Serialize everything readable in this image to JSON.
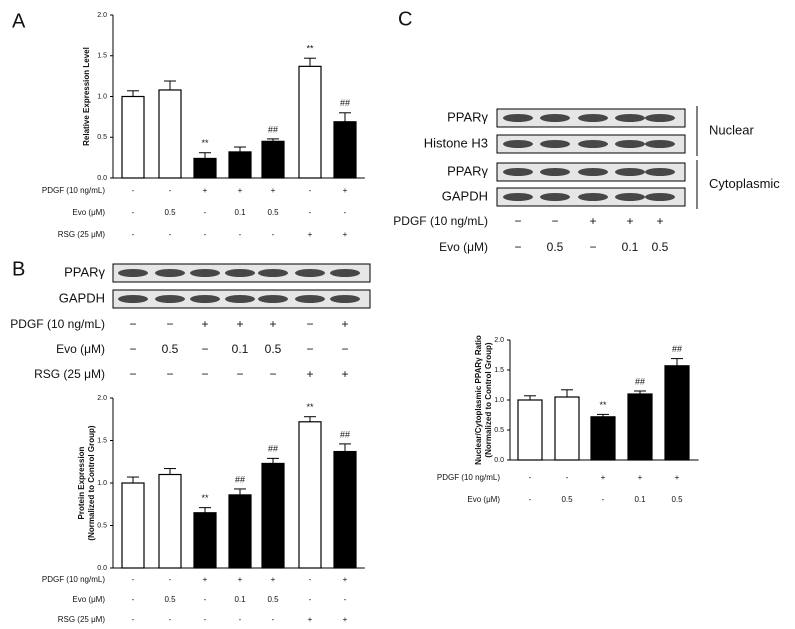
{
  "panel_labels": [
    "A",
    "B",
    "C"
  ],
  "chart_data": [
    {
      "type": "bar",
      "ylabel": [
        "Relative Expression Level"
      ],
      "categories": [
        null,
        null,
        null,
        null,
        null,
        null,
        null
      ],
      "values": [
        1.0,
        1.08,
        0.24,
        0.32,
        0.45,
        1.37,
        0.69
      ],
      "errors": [
        0.07,
        0.11,
        0.07,
        0.06,
        0.03,
        0.1,
        0.11
      ],
      "colors": [
        "#ffffff",
        "#ffffff",
        "#000000",
        "#000000",
        "#000000",
        "#ffffff",
        "#000000"
      ],
      "annotations": [
        null,
        null,
        "**",
        null,
        "##",
        "**",
        "##"
      ],
      "ylim": [
        0,
        2.0
      ],
      "yticks": [
        {
          "value": 0,
          "label": "0.0"
        },
        0.5,
        {
          "value": 1,
          "label": "1.0"
        },
        1.5,
        {
          "value": 2,
          "label": "2.0"
        }
      ],
      "treatments": [
        {
          "name": "PDGF (10 ng/mL)",
          "values": [
            "-",
            "-",
            "+",
            "+",
            "+",
            "-",
            "+"
          ]
        },
        {
          "name": "Evo (μM)",
          "values": [
            "-",
            "0.5",
            "-",
            "0.1",
            "0.5",
            "-",
            "-"
          ]
        },
        {
          "name": "RSG (25 μM)",
          "values": [
            "-",
            "-",
            "-",
            "-",
            "-",
            "+",
            "+"
          ]
        }
      ]
    },
    {
      "type": "bar",
      "ylabel": [
        "Protein Expression",
        "(Normalized to Control Group)"
      ],
      "categories": [
        null,
        null,
        null,
        null,
        null,
        null,
        null
      ],
      "values": [
        1.0,
        1.1,
        0.65,
        0.86,
        1.23,
        1.72,
        1.37
      ],
      "errors": [
        0.07,
        0.07,
        0.06,
        0.07,
        0.06,
        0.06,
        0.09
      ],
      "colors": [
        "#ffffff",
        "#ffffff",
        "#000000",
        "#000000",
        "#000000",
        "#ffffff",
        "#000000"
      ],
      "annotations": [
        null,
        null,
        "**",
        "##",
        "##",
        "**",
        "##"
      ],
      "ylim": [
        0,
        2.0
      ],
      "yticks": [
        {
          "value": 0,
          "label": "0.0"
        },
        0.5,
        {
          "value": 1,
          "label": "1.0"
        },
        1.5,
        {
          "value": 2,
          "label": "2.0"
        }
      ],
      "treatments": [
        {
          "name": "PDGF (10 ng/mL)",
          "values": [
            "-",
            "-",
            "+",
            "+",
            "+",
            "-",
            "+"
          ]
        },
        {
          "name": "Evo (μM)",
          "values": [
            "-",
            "0.5",
            "-",
            "0.1",
            "0.5",
            "-",
            "-"
          ]
        },
        {
          "name": "RSG (25 μM)",
          "values": [
            "-",
            "-",
            "-",
            "-",
            "-",
            "+",
            "+"
          ]
        }
      ]
    },
    {
      "type": "bar",
      "ylabel": [
        "Nuclear/Cytoplasmic PPARγ Ratio",
        "(Normalized to Control Group)"
      ],
      "categories": [
        null,
        null,
        null,
        null,
        null
      ],
      "values": [
        1.0,
        1.05,
        0.72,
        1.1,
        1.57
      ],
      "errors": [
        0.07,
        0.12,
        0.04,
        0.05,
        0.12
      ],
      "colors": [
        "#ffffff",
        "#ffffff",
        "#000000",
        "#000000",
        "#000000"
      ],
      "annotations": [
        null,
        null,
        "**",
        "##",
        "##"
      ],
      "ylim": [
        0,
        2.0
      ],
      "yticks": [
        {
          "value": 0,
          "label": "0.0"
        },
        0.5,
        {
          "value": 1,
          "label": "1.0"
        },
        1.5,
        {
          "value": 2,
          "label": "2.0"
        }
      ],
      "treatments": [
        {
          "name": "PDGF (10 ng/mL)",
          "values": [
            "-",
            "-",
            "+",
            "+",
            "+"
          ]
        },
        {
          "name": "Evo (μM)",
          "values": [
            "-",
            "0.5",
            "-",
            "0.1",
            "0.5"
          ]
        }
      ]
    }
  ],
  "blots": [
    {
      "rows": [
        "PPARγ",
        "GAPDH"
      ],
      "groups": [],
      "treatments": [
        {
          "name": "PDGF (10 ng/mL)",
          "values": [
            "−",
            "−",
            "+",
            "+",
            "+",
            "−",
            "+"
          ]
        },
        {
          "name": "Evo (μM)",
          "values": [
            "−",
            "0.5",
            "−",
            "0.1",
            "0.5",
            "−",
            "−"
          ]
        },
        {
          "name": "RSG (25 μM)",
          "values": [
            "−",
            "−",
            "−",
            "−",
            "−",
            "+",
            "+"
          ]
        }
      ]
    },
    {
      "rows": [
        "PPARγ",
        "Histone H3",
        "PPARγ",
        "GAPDH"
      ],
      "groups": [
        "Nuclear",
        "Cytoplasmic"
      ],
      "treatments": [
        {
          "name": "PDGF (10 ng/mL)",
          "values": [
            "−",
            "−",
            "+",
            "+",
            "+"
          ]
        },
        {
          "name": "Evo (μM)",
          "values": [
            "−",
            "0.5",
            "−",
            "0.1",
            "0.5"
          ]
        }
      ]
    }
  ]
}
